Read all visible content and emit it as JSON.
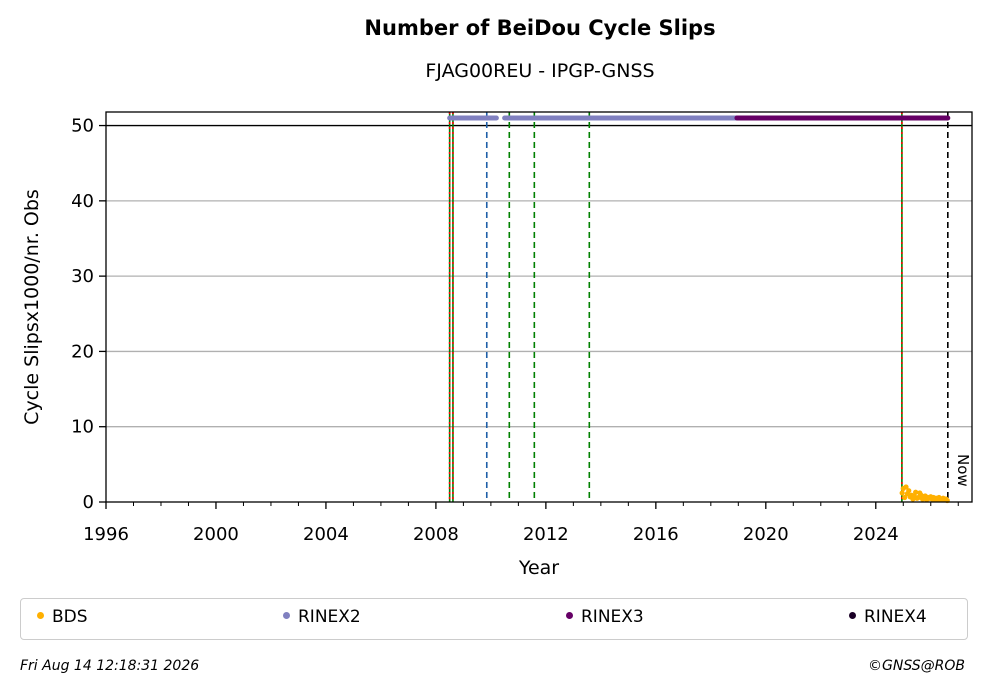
{
  "chart_data": {
    "type": "scatter",
    "title": "Number of BeiDou Cycle Slips",
    "subtitle": "FJAG00REU - IPGP-GNSS",
    "xlabel": "Year",
    "ylabel": "Cycle Slipsx1000/nr. Obs",
    "xlim": [
      1996,
      2027.5
    ],
    "ylim": [
      0,
      51.8
    ],
    "x_ticks": [
      1996,
      2000,
      2004,
      2008,
      2012,
      2016,
      2020,
      2024
    ],
    "y_ticks": [
      0,
      10,
      20,
      30,
      40,
      50
    ],
    "grid": "horizontal",
    "reference_line_y": 50,
    "now_label": "Now",
    "now_x": 2026.62,
    "vertical_lines": [
      {
        "x": 2008.5,
        "color": "#008000",
        "style": "solid"
      },
      {
        "x": 2008.5,
        "color": "#ff0000",
        "style": "dotted"
      },
      {
        "x": 2008.62,
        "color": "#008000",
        "style": "solid"
      },
      {
        "x": 2008.62,
        "color": "#ff0000",
        "style": "dotted"
      },
      {
        "x": 2009.85,
        "color": "#1f5fa8",
        "style": "dashed"
      },
      {
        "x": 2010.67,
        "color": "#008000",
        "style": "dashed"
      },
      {
        "x": 2011.58,
        "color": "#008000",
        "style": "dashed"
      },
      {
        "x": 2013.58,
        "color": "#008000",
        "style": "dashed"
      },
      {
        "x": 2024.95,
        "color": "#008000",
        "style": "solid"
      },
      {
        "x": 2024.95,
        "color": "#ff0000",
        "style": "dotted"
      },
      {
        "x": 2026.62,
        "color": "#000000",
        "style": "dashed"
      }
    ],
    "rinex_bars": [
      {
        "series": "RINEX2",
        "color": "#8080c0",
        "x_start": 2008.5,
        "x_end": 2010.2
      },
      {
        "series": "RINEX2",
        "color": "#8080c0",
        "x_start": 2010.5,
        "x_end": 2018.95
      },
      {
        "series": "RINEX3",
        "color": "#660066",
        "x_start": 2018.95,
        "x_end": 2026.62
      }
    ],
    "rinex_bar_y": 51,
    "series": [
      {
        "name": "BDS",
        "color": "#ffb000",
        "points": [
          [
            2024.96,
            1.2
          ],
          [
            2025.0,
            1.8
          ],
          [
            2025.05,
            0.6
          ],
          [
            2025.1,
            2.0
          ],
          [
            2025.15,
            1.1
          ],
          [
            2025.2,
            1.5
          ],
          [
            2025.25,
            0.7
          ],
          [
            2025.3,
            0.9
          ],
          [
            2025.35,
            0.4
          ],
          [
            2025.4,
            0.8
          ],
          [
            2025.45,
            1.3
          ],
          [
            2025.5,
            0.5
          ],
          [
            2025.55,
            0.6
          ],
          [
            2025.6,
            1.2
          ],
          [
            2025.65,
            0.9
          ],
          [
            2025.7,
            0.4
          ],
          [
            2025.75,
            0.6
          ],
          [
            2025.8,
            0.8
          ],
          [
            2025.85,
            0.3
          ],
          [
            2025.9,
            0.6
          ],
          [
            2025.95,
            0.5
          ],
          [
            2026.0,
            0.7
          ],
          [
            2026.05,
            0.4
          ],
          [
            2026.1,
            0.6
          ],
          [
            2026.15,
            0.3
          ],
          [
            2026.2,
            0.5
          ],
          [
            2026.25,
            0.4
          ],
          [
            2026.3,
            0.6
          ],
          [
            2026.35,
            0.3
          ],
          [
            2026.4,
            0.4
          ],
          [
            2026.45,
            0.5
          ],
          [
            2026.5,
            0.3
          ],
          [
            2026.55,
            0.4
          ],
          [
            2026.6,
            0.2
          ]
        ]
      }
    ],
    "legend": [
      {
        "label": "BDS",
        "color": "#ffb000"
      },
      {
        "label": "RINEX2",
        "color": "#8080c0"
      },
      {
        "label": "RINEX3",
        "color": "#660066"
      },
      {
        "label": "RINEX4",
        "color": "#1a0026"
      }
    ]
  },
  "footer": {
    "timestamp": "Fri Aug 14 12:18:31 2026",
    "credit": "©GNSS@ROB"
  }
}
